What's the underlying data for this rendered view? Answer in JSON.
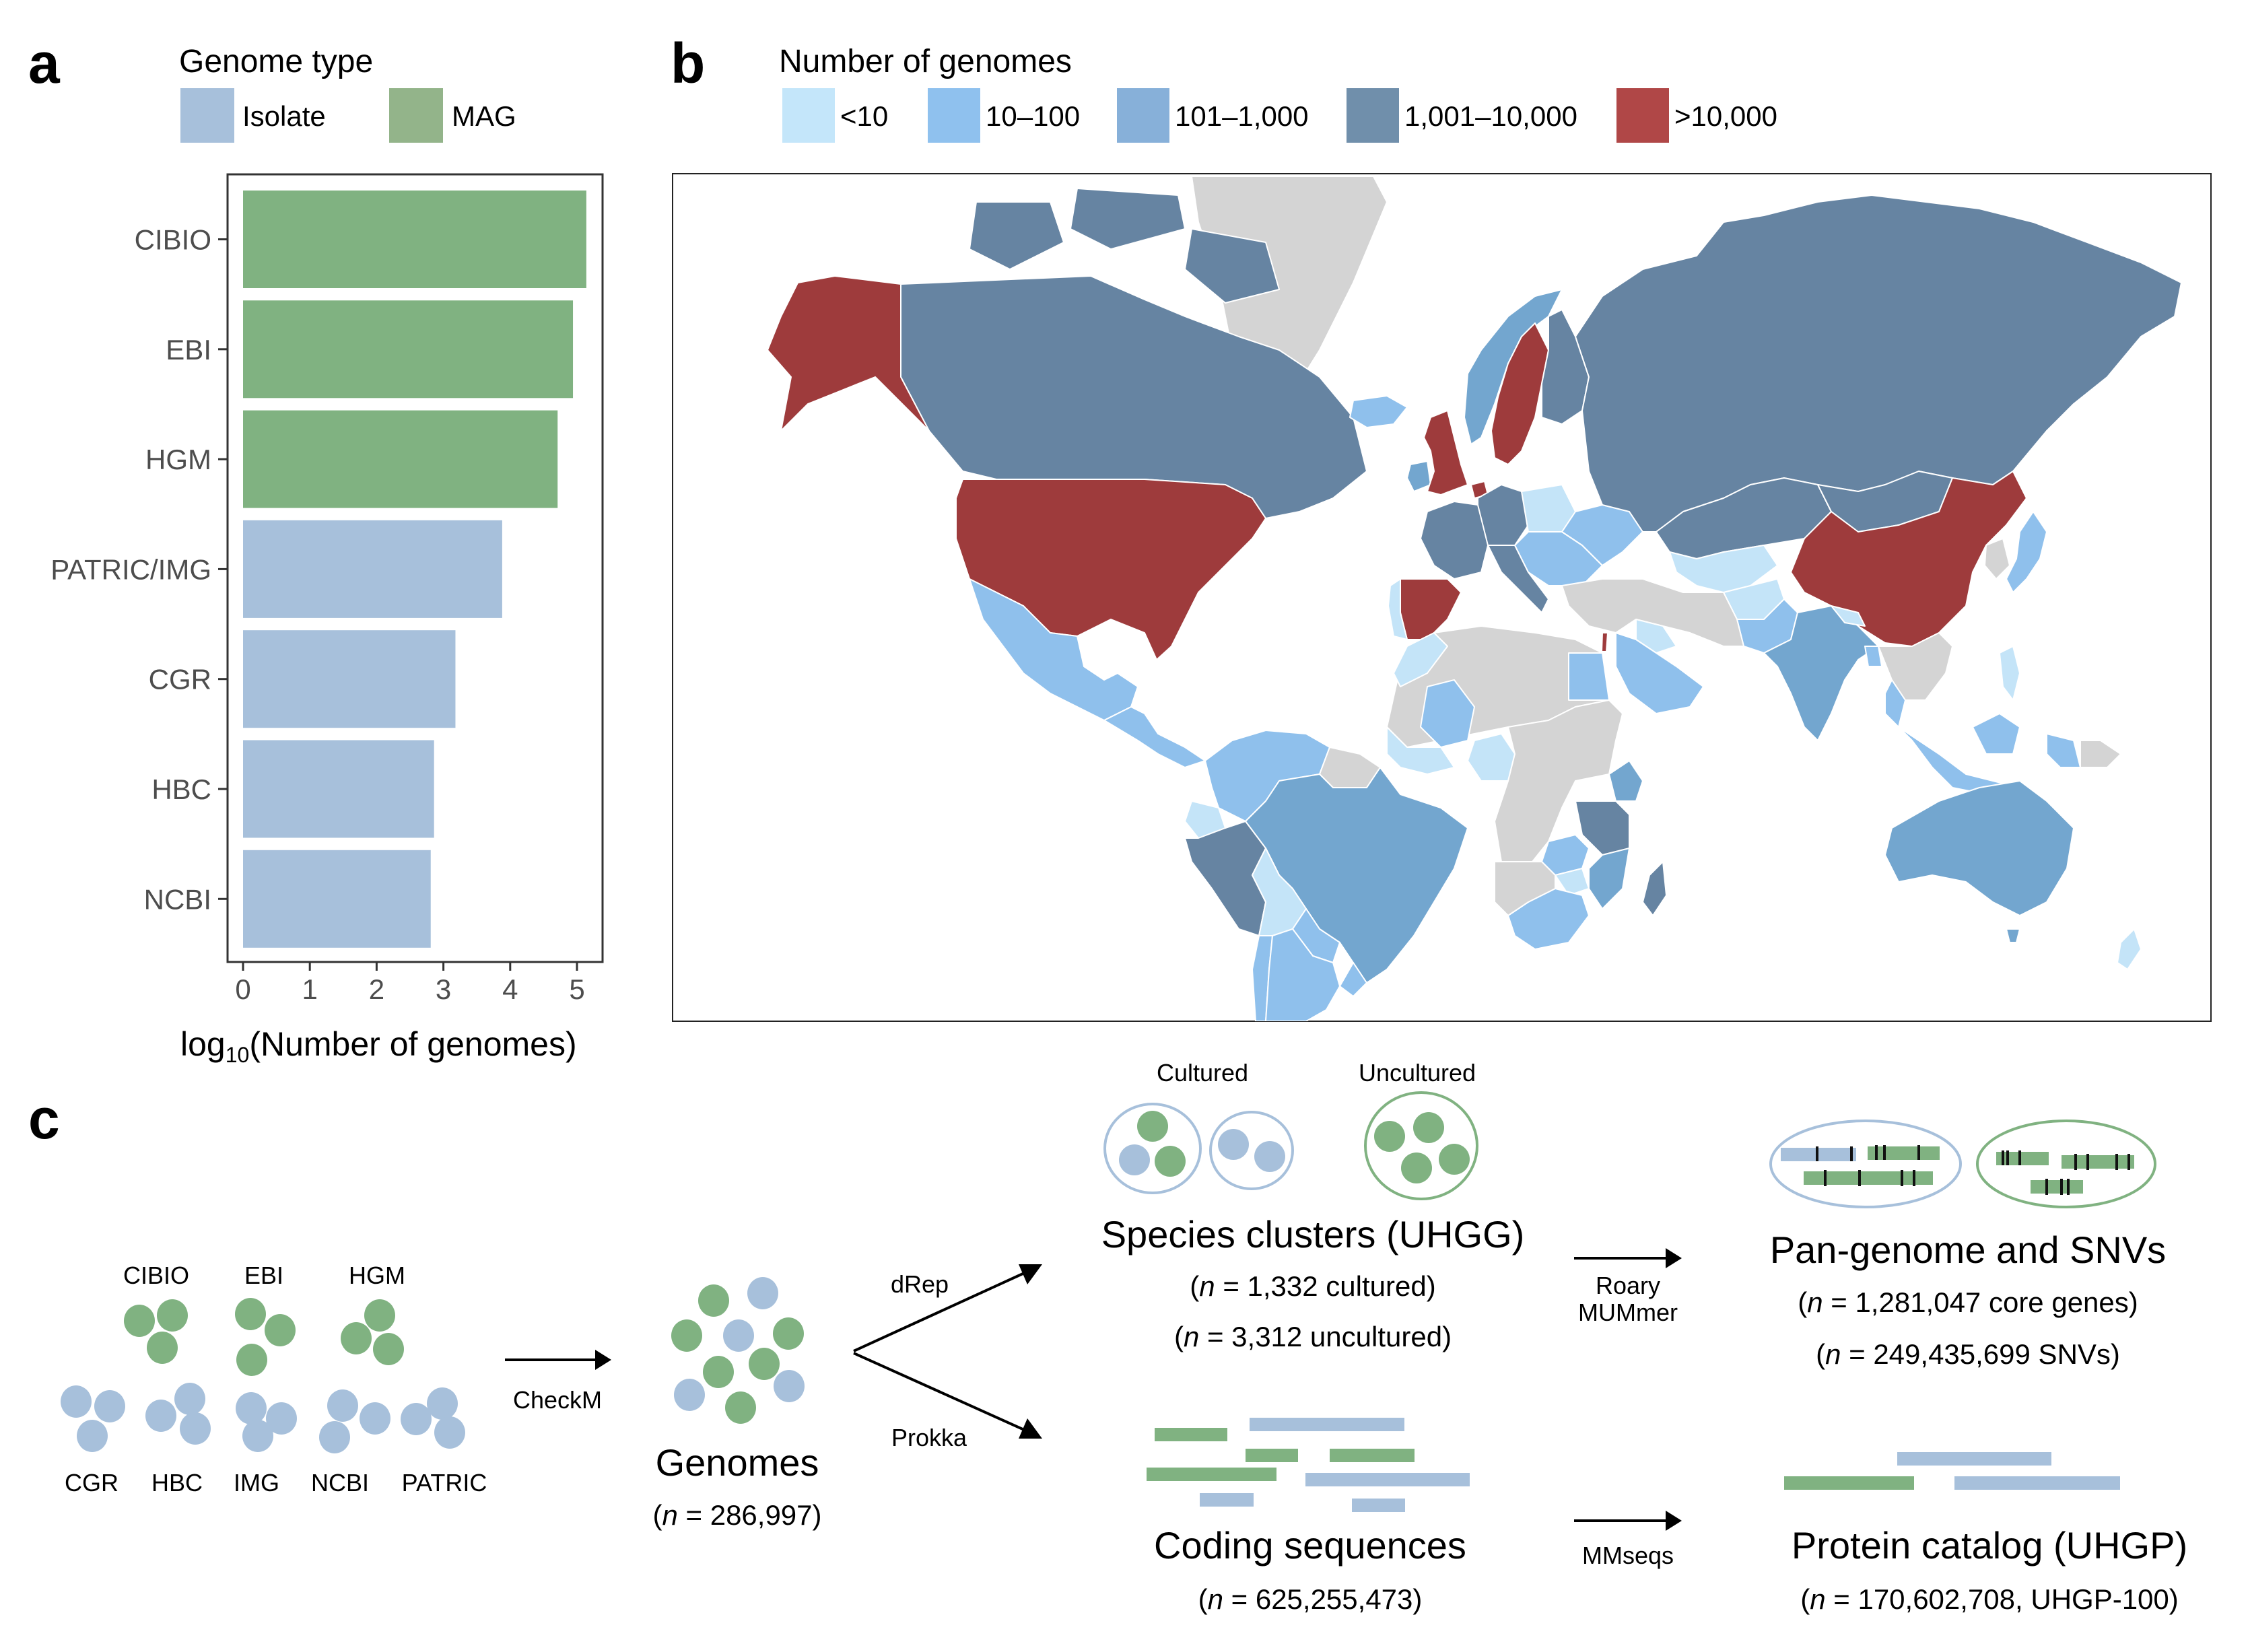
{
  "panels": {
    "a": {
      "letter": "a"
    },
    "b": {
      "letter": "b"
    },
    "c": {
      "letter": "c"
    }
  },
  "colors": {
    "isolate": "#a7c0db",
    "mag": "#80b281",
    "legend_mag": "#93b48a",
    "axis": "#333333",
    "tick_text": "#4d4d4d",
    "map_lt10": "#c4e4f8",
    "map_10_100": "#8fc0ec",
    "map_101_1000": "#73a6cf",
    "map_1001_10000": "#6684a2",
    "map_gt10000": "#9e3b3c",
    "map_nodata": "#d4d4d4",
    "legend_lt10": "#c4e6fa",
    "legend_10_100": "#8fc1ee",
    "legend_101_1000": "#87b0d9",
    "legend_1001_10000": "#708fab",
    "legend_gt10000": "#b04747"
  },
  "genome_type_legend": {
    "title": "Genome type",
    "items": [
      {
        "label": "Isolate",
        "key": "isolate"
      },
      {
        "label": "MAG",
        "key": "mag"
      }
    ]
  },
  "chart_data": [
    {
      "type": "bar",
      "orientation": "horizontal",
      "title": "",
      "categories": [
        "CIBIO",
        "EBI",
        "HGM",
        "PATRIC/IMG",
        "CGR",
        "HBC",
        "NCBI"
      ],
      "values": [
        5.14,
        4.94,
        4.71,
        3.88,
        3.18,
        2.86,
        2.81
      ],
      "series_type": [
        "MAG",
        "MAG",
        "MAG",
        "Isolate",
        "Isolate",
        "Isolate",
        "Isolate"
      ],
      "xlabel": "log10(Number of genomes)",
      "xlabel_parts": {
        "pre": "log",
        "sub": "10",
        "post": "(Number of genomes)"
      },
      "ylabel": "",
      "xlim": [
        0,
        5.3
      ],
      "xticks": [
        0,
        1,
        2,
        3,
        4,
        5
      ],
      "grid": false,
      "legend": {
        "title": "Genome type",
        "entries": [
          "Isolate",
          "MAG"
        ],
        "placement": "top"
      }
    },
    {
      "type": "choropleth",
      "title": "Number of genomes",
      "legend": {
        "title": "Number of genomes",
        "placement": "top",
        "bins": [
          {
            "label": "<10",
            "key": "lt10"
          },
          {
            "label": "10–100",
            "key": "10_100"
          },
          {
            "label": "101–1,000",
            "key": "101_1000"
          },
          {
            "label": "1,001–10,000",
            "key": "1001_10000"
          },
          {
            "label": ">10,000",
            "key": "gt10000"
          }
        ]
      },
      "regions": [
        {
          "name": "United States",
          "bin": "gt10000"
        },
        {
          "name": "Alaska (United States)",
          "bin": "gt10000"
        },
        {
          "name": "Canada",
          "bin": "1001_10000"
        },
        {
          "name": "Greenland",
          "bin": "nodata"
        },
        {
          "name": "Iceland",
          "bin": "10_100"
        },
        {
          "name": "Mexico",
          "bin": "10_100"
        },
        {
          "name": "Central America",
          "bin": "10_100"
        },
        {
          "name": "Colombia/Venezuela",
          "bin": "10_100"
        },
        {
          "name": "Guianas",
          "bin": "nodata"
        },
        {
          "name": "Ecuador",
          "bin": "lt10"
        },
        {
          "name": "Peru",
          "bin": "1001_10000"
        },
        {
          "name": "Brazil",
          "bin": "101_1000"
        },
        {
          "name": "Bolivia",
          "bin": "lt10"
        },
        {
          "name": "Paraguay",
          "bin": "10_100"
        },
        {
          "name": "Uruguay",
          "bin": "10_100"
        },
        {
          "name": "Argentina",
          "bin": "10_100"
        },
        {
          "name": "Chile",
          "bin": "10_100"
        },
        {
          "name": "United Kingdom",
          "bin": "gt10000"
        },
        {
          "name": "Ireland",
          "bin": "101_1000"
        },
        {
          "name": "Spain",
          "bin": "gt10000"
        },
        {
          "name": "Portugal",
          "bin": "lt10"
        },
        {
          "name": "France",
          "bin": "1001_10000"
        },
        {
          "name": "Germany",
          "bin": "1001_10000"
        },
        {
          "name": "Netherlands",
          "bin": "gt10000"
        },
        {
          "name": "Italy",
          "bin": "1001_10000"
        },
        {
          "name": "Norway",
          "bin": "101_1000"
        },
        {
          "name": "Sweden",
          "bin": "gt10000"
        },
        {
          "name": "Finland",
          "bin": "1001_10000"
        },
        {
          "name": "Poland",
          "bin": "lt10"
        },
        {
          "name": "Ukraine",
          "bin": "10_100"
        },
        {
          "name": "Eastern Europe",
          "bin": "10_100"
        },
        {
          "name": "Russia",
          "bin": "1001_10000"
        },
        {
          "name": "Kazakhstan",
          "bin": "1001_10000"
        },
        {
          "name": "Mongolia",
          "bin": "1001_10000"
        },
        {
          "name": "China",
          "bin": "gt10000"
        },
        {
          "name": "Japan",
          "bin": "10_100"
        },
        {
          "name": "Korea",
          "bin": "nodata"
        },
        {
          "name": "Central Asia",
          "bin": "lt10"
        },
        {
          "name": "Afghanistan",
          "bin": "lt10"
        },
        {
          "name": "Pakistan",
          "bin": "10_100"
        },
        {
          "name": "India",
          "bin": "101_1000"
        },
        {
          "name": "Nepal",
          "bin": "lt10"
        },
        {
          "name": "Bangladesh",
          "bin": "10_100"
        },
        {
          "name": "Southeast Asia",
          "bin": "nodata"
        },
        {
          "name": "Thailand",
          "bin": "10_100"
        },
        {
          "name": "Malaysia/Indonesia",
          "bin": "10_100"
        },
        {
          "name": "Philippines",
          "bin": "lt10"
        },
        {
          "name": "Papua New Guinea",
          "bin": "nodata"
        },
        {
          "name": "Australia",
          "bin": "101_1000"
        },
        {
          "name": "New Zealand",
          "bin": "lt10"
        },
        {
          "name": "Middle East",
          "bin": "nodata"
        },
        {
          "name": "Iraq",
          "bin": "lt10"
        },
        {
          "name": "Saudi Arabia",
          "bin": "10_100"
        },
        {
          "name": "Israel",
          "bin": "gt10000"
        },
        {
          "name": "North Africa",
          "bin": "nodata"
        },
        {
          "name": "Morocco",
          "bin": "lt10"
        },
        {
          "name": "Egypt",
          "bin": "10_100"
        },
        {
          "name": "Mali",
          "bin": "10_100"
        },
        {
          "name": "West Africa",
          "bin": "lt10"
        },
        {
          "name": "Nigeria",
          "bin": "lt10"
        },
        {
          "name": "Central Africa",
          "bin": "nodata"
        },
        {
          "name": "Kenya",
          "bin": "101_1000"
        },
        {
          "name": "Tanzania",
          "bin": "1001_10000"
        },
        {
          "name": "Malawi/Zambia",
          "bin": "10_100"
        },
        {
          "name": "Zimbabwe",
          "bin": "lt10"
        },
        {
          "name": "Mozambique",
          "bin": "101_1000"
        },
        {
          "name": "Madagascar",
          "bin": "1001_10000"
        },
        {
          "name": "South Africa",
          "bin": "10_100"
        },
        {
          "name": "Southern Africa",
          "bin": "nodata"
        }
      ]
    }
  ],
  "workflow": {
    "sources_mag": [
      {
        "label": "CIBIO"
      },
      {
        "label": "EBI"
      },
      {
        "label": "HGM"
      }
    ],
    "sources_isolate": [
      {
        "label": "CGR"
      },
      {
        "label": "HBC"
      },
      {
        "label": "IMG"
      },
      {
        "label": "NCBI"
      },
      {
        "label": "PATRIC"
      }
    ],
    "step_checkm": "CheckM",
    "genomes": {
      "title": "Genomes",
      "n_prefix": "(",
      "n_var": "n",
      "n_text": " = 286,997)"
    },
    "step_drep": "dRep",
    "step_prokka": "Prokka",
    "cultured_label": "Cultured",
    "uncultured_label": "Uncultured",
    "species": {
      "title": "Species clusters (UHGG)",
      "line1": {
        "pre": "(",
        "var": "n",
        "text": " = 1,332 cultured)"
      },
      "line2": {
        "pre": "(",
        "var": "n",
        "text": " = 3,312 uncultured)"
      }
    },
    "coding": {
      "title": "Coding sequences",
      "line1": {
        "pre": "(",
        "var": "n",
        "text": " = 625,255,473)"
      }
    },
    "step_roary": "Roary",
    "step_mummer": "MUMmer",
    "step_mmseqs": "MMseqs",
    "pangenome": {
      "title": "Pan-genome and SNVs",
      "line1": {
        "pre": "(",
        "var": "n",
        "text": " = 1,281,047 core genes)"
      },
      "line2": {
        "pre": "(",
        "var": "n",
        "text": " = 249,435,699 SNVs)"
      }
    },
    "protein": {
      "title": "Protein catalog (UHGP)",
      "line1": {
        "pre": "(",
        "var": "n",
        "text": " = 170,602,708, UHGP-100)"
      }
    }
  }
}
